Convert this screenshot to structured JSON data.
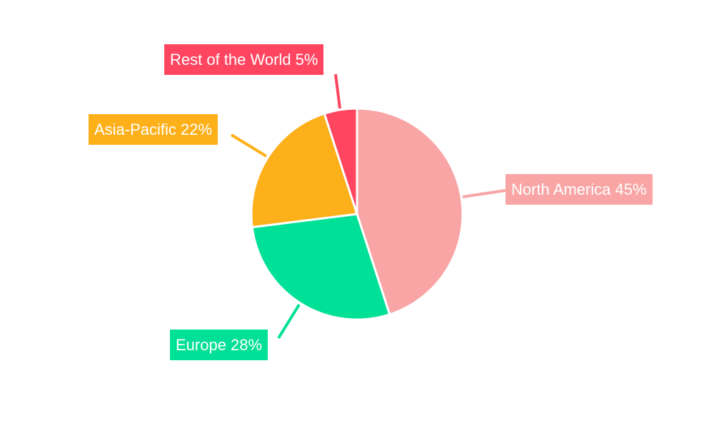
{
  "chart_data": {
    "type": "pie",
    "start_angle_deg": 0,
    "direction": "clockwise",
    "slices": [
      {
        "label": "North America",
        "value": 45,
        "display": "North America 45%",
        "color": "#f9a5a5"
      },
      {
        "label": "Europe",
        "value": 28,
        "display": "Europe 28%",
        "color": "#00e096"
      },
      {
        "label": "Asia-Pacific",
        "value": 22,
        "display": "Asia-Pacific 22%",
        "color": "#fdb01a"
      },
      {
        "label": "Rest of the World",
        "value": 5,
        "display": "Rest of the World 5%",
        "color": "#ff4560"
      }
    ]
  }
}
